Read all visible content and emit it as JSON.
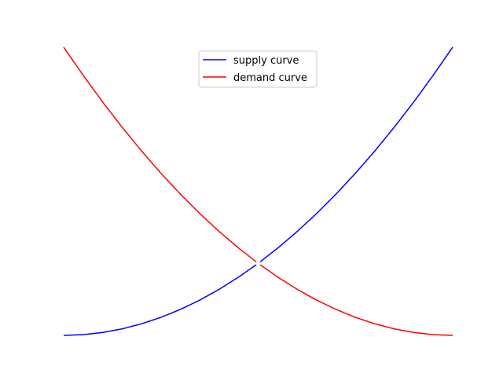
{
  "chart_data": {
    "type": "line",
    "title": "",
    "xlabel": "",
    "ylabel": "",
    "axes_visible": false,
    "grid": false,
    "legend_position": "upper center",
    "xlim": [
      0,
      10
    ],
    "ylim": [
      0,
      100
    ],
    "series": [
      {
        "name": "supply curve",
        "color": "#0000ff",
        "x": [
          0,
          0.5,
          1,
          1.5,
          2,
          2.5,
          3,
          3.5,
          4,
          4.5,
          4.95
        ],
        "y": [
          0,
          0.25,
          1,
          2.25,
          4,
          6.25,
          9,
          12.25,
          16,
          20.25,
          24.5
        ]
      },
      {
        "name": "supply curve",
        "color": "#0000ff",
        "x": [
          5.05,
          5.5,
          6,
          6.5,
          7,
          7.5,
          8,
          8.5,
          9,
          9.5,
          10
        ],
        "y": [
          25.5,
          30.25,
          36,
          42.25,
          49,
          56.25,
          64,
          72.25,
          81,
          90.25,
          100
        ]
      },
      {
        "name": "demand curve",
        "color": "#ff0000",
        "x": [
          0,
          0.5,
          1,
          1.5,
          2,
          2.5,
          3,
          3.5,
          4,
          4.5,
          4.95
        ],
        "y": [
          100,
          90.25,
          81,
          72.25,
          64,
          56.25,
          49,
          42.25,
          36,
          30.25,
          25.5
        ]
      },
      {
        "name": "demand curve",
        "color": "#ff0000",
        "x": [
          5.05,
          5.5,
          6,
          6.5,
          7,
          7.5,
          8,
          8.5,
          9,
          9.5,
          10
        ],
        "y": [
          24.5,
          20.25,
          16,
          12.25,
          9,
          6.25,
          4,
          2.25,
          1,
          0.25,
          0
        ]
      }
    ],
    "legend": [
      {
        "label": "supply curve",
        "color": "#0000ff"
      },
      {
        "label": "demand curve",
        "color": "#ff0000"
      }
    ]
  }
}
